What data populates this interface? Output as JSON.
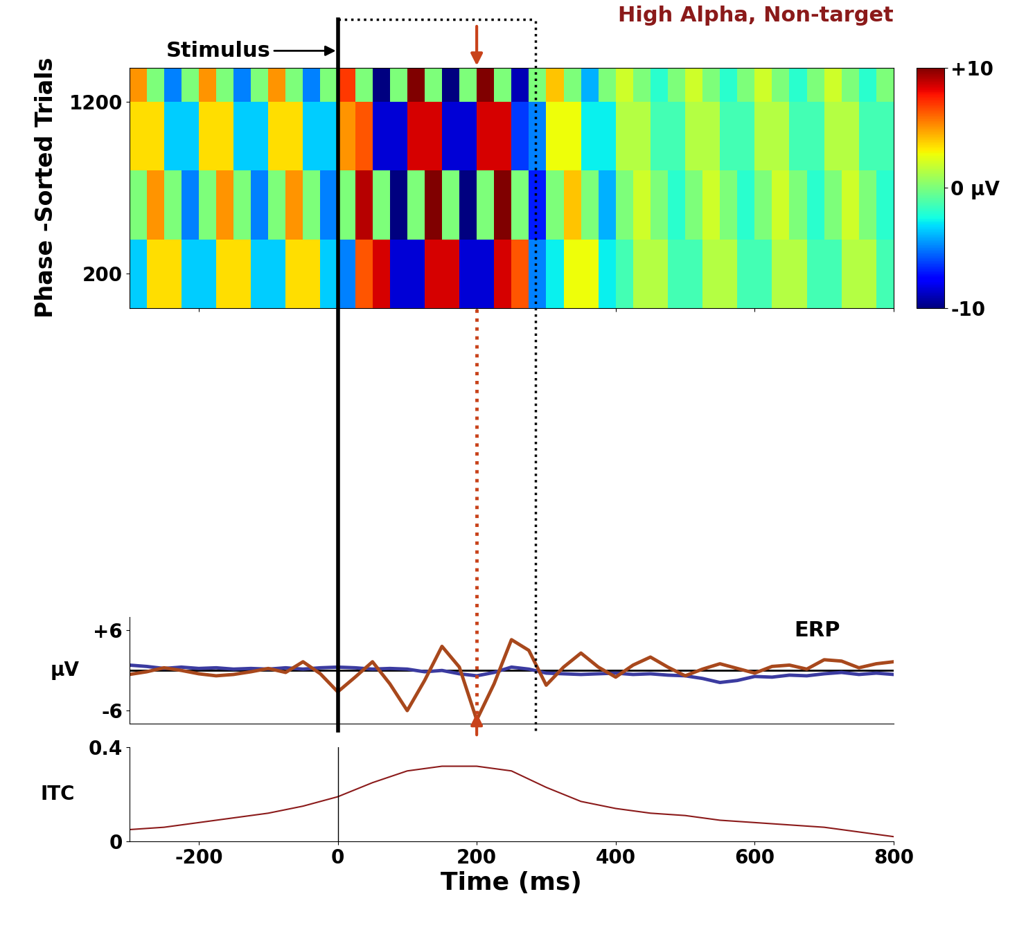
{
  "chart_data": [
    {
      "type": "heatmap",
      "title": "High Alpha, Non-target",
      "y_label": "Phase -Sorted Trials",
      "x_edges": [
        -300,
        -275,
        -250,
        -225,
        -200,
        -175,
        -150,
        -125,
        -100,
        -75,
        -50,
        -25,
        0,
        25,
        50,
        75,
        100,
        125,
        150,
        175,
        200,
        225,
        250,
        275,
        300,
        325,
        350,
        375,
        400,
        425,
        450,
        475,
        500,
        525,
        550,
        575,
        600,
        625,
        650,
        675,
        700,
        725,
        750,
        775,
        800
      ],
      "y_edges": [
        0,
        200,
        400,
        600,
        800,
        1000,
        1200,
        1400
      ],
      "cells": [
        [
          -3.5,
          3.5,
          3.5,
          -3.5,
          -3.5,
          3.5,
          3.5,
          -3.5,
          -3.5,
          3.5,
          3.5,
          -3.5,
          -5.0,
          6.4,
          8.5,
          -8.5,
          -8.5,
          8.5,
          8.5,
          -8.5,
          -8.5,
          8.5,
          6.4,
          -5.0,
          -2.8,
          2.8,
          2.8,
          -2.8,
          -1.4,
          1.4,
          1.4,
          -1.4,
          -1.4,
          1.4,
          1.4,
          -1.4,
          -1.4,
          1.4,
          1.4,
          -1.4,
          -1.4,
          1.4,
          1.4,
          -1.4
        ],
        [
          -3.5,
          3.5,
          3.5,
          -3.5,
          -3.5,
          3.5,
          3.5,
          -3.5,
          -3.5,
          3.5,
          3.5,
          -3.5,
          -5.0,
          6.4,
          8.5,
          -8.5,
          -8.5,
          8.5,
          8.5,
          -8.5,
          -8.5,
          8.5,
          6.4,
          -5.0,
          -2.8,
          2.8,
          2.8,
          -2.8,
          -1.4,
          1.4,
          1.4,
          -1.4,
          -1.4,
          1.4,
          1.4,
          -1.4,
          -1.4,
          1.4,
          1.4,
          -1.4,
          -1.4,
          1.4,
          1.4,
          -1.4
        ],
        [
          0,
          5,
          0,
          -5,
          0,
          5,
          0,
          -5,
          0,
          5,
          0,
          -5,
          0,
          9,
          0,
          -12,
          0,
          12,
          0,
          -12,
          0,
          12,
          0,
          -7,
          0,
          4,
          0,
          -4,
          0,
          2,
          0,
          -2,
          0,
          2,
          0,
          -2,
          0,
          2,
          0,
          -2,
          0,
          2,
          0,
          -2
        ],
        [
          0,
          5,
          0,
          -5,
          0,
          5,
          0,
          -5,
          0,
          5,
          0,
          -5,
          0,
          9,
          0,
          -12,
          0,
          12,
          0,
          -12,
          0,
          12,
          0,
          -7,
          0,
          4,
          0,
          -4,
          0,
          2,
          0,
          -2,
          0,
          2,
          0,
          -2,
          0,
          2,
          0,
          -2,
          0,
          2,
          0,
          -2
        ],
        [
          3.5,
          3.5,
          -3.5,
          -3.5,
          3.5,
          3.5,
          -3.5,
          -3.5,
          3.5,
          3.5,
          -3.5,
          -3.5,
          5.0,
          6.4,
          -8.5,
          -8.5,
          8.5,
          8.5,
          -8.5,
          -8.5,
          8.5,
          8.5,
          -6.4,
          -5.0,
          2.8,
          2.8,
          -2.8,
          -2.8,
          1.4,
          1.4,
          -1.4,
          -1.4,
          1.4,
          1.4,
          -1.4,
          -1.4,
          1.4,
          1.4,
          -1.4,
          -1.4,
          1.4,
          1.4,
          -1.4,
          -1.4
        ],
        [
          3.5,
          3.5,
          -3.5,
          -3.5,
          3.5,
          3.5,
          -3.5,
          -3.5,
          3.5,
          3.5,
          -3.5,
          -3.5,
          5.0,
          6.4,
          -8.5,
          -8.5,
          8.5,
          8.5,
          -8.5,
          -8.5,
          8.5,
          8.5,
          -6.4,
          -5.0,
          2.8,
          2.8,
          -2.8,
          -2.8,
          1.4,
          1.4,
          -1.4,
          -1.4,
          1.4,
          1.4,
          -1.4,
          -1.4,
          1.4,
          1.4,
          -1.4,
          -1.4,
          1.4,
          1.4,
          -1.4,
          -1.4
        ],
        [
          5,
          0,
          -5,
          0,
          5,
          0,
          -5,
          0,
          5,
          0,
          -5,
          0,
          7,
          0,
          -12,
          0,
          12,
          0,
          -12,
          0,
          12,
          0,
          -9,
          0,
          4,
          0,
          -4,
          0,
          2,
          0,
          -2,
          0,
          2,
          0,
          -2,
          0,
          2,
          0,
          -2,
          0,
          2,
          0,
          -2,
          0
        ]
      ],
      "xlim": [
        -300,
        800
      ],
      "ylim": [
        0,
        1400
      ],
      "xticks": [
        -200,
        0,
        200,
        400,
        600,
        800
      ],
      "yticks": [
        200,
        1200
      ],
      "tick_labels": "y",
      "colorbar_range": [
        -10,
        10
      ],
      "colorbar_ticks": [
        {
          "value": 10,
          "label": "+10"
        },
        {
          "value": 0,
          "label": "0 μV"
        },
        -10
      ],
      "events": [
        {
          "label": "Stimulus",
          "x": 0
        }
      ],
      "window": [
        0,
        285
      ],
      "latency": 200
    },
    {
      "type": "line",
      "annotation": "ERP",
      "y_label": "μV",
      "x": [
        -300,
        -275,
        -250,
        -225,
        -200,
        -175,
        -150,
        -125,
        -100,
        -75,
        -50,
        -25,
        0,
        25,
        50,
        75,
        100,
        125,
        150,
        175,
        200,
        225,
        250,
        275,
        300,
        325,
        350,
        375,
        400,
        425,
        450,
        475,
        500,
        525,
        550,
        575,
        600,
        625,
        650,
        675,
        700,
        725,
        750,
        775,
        800
      ],
      "series": [
        {
          "color": "#3b3ba0",
          "values": [
            0.8,
            0.6,
            0.3,
            0.5,
            0.3,
            0.4,
            0.2,
            0.3,
            0.2,
            0.4,
            0.2,
            0.4,
            0.5,
            0.4,
            0.2,
            0.3,
            0.2,
            -0.2,
            0.0,
            -0.5,
            -0.8,
            -0.3,
            0.5,
            0.2,
            -0.4,
            -0.5,
            -0.6,
            -0.5,
            -0.4,
            -0.6,
            -0.5,
            -0.7,
            -0.8,
            -1.2,
            -1.8,
            -1.5,
            -0.9,
            -1.0,
            -0.7,
            -0.8,
            -0.5,
            -0.3,
            -0.6,
            -0.4,
            -0.6
          ]
        },
        {
          "color": "#a8481c",
          "values": [
            -0.6,
            -0.2,
            0.4,
            0.0,
            -0.5,
            -0.8,
            -0.6,
            -0.2,
            0.3,
            -0.3,
            1.3,
            -0.5,
            -3.2,
            -1.0,
            1.3,
            -2.0,
            -6.0,
            -1.5,
            3.6,
            0.5,
            -7.4,
            -2.0,
            4.6,
            3.0,
            -2.2,
            0.5,
            2.6,
            0.5,
            -1.0,
            0.8,
            2.0,
            0.5,
            -0.8,
            0.2,
            1.0,
            0.3,
            -0.4,
            0.6,
            0.8,
            0.2,
            1.6,
            1.4,
            0.4,
            1.0,
            1.3
          ]
        }
      ],
      "zero_line": 0,
      "xlim": [
        -300,
        800
      ],
      "ylim": [
        -8,
        8
      ],
      "yticks": [
        {
          "value": 6,
          "label": "+6"
        },
        {
          "value": -6,
          "label": "-6"
        }
      ],
      "tick_labels": "y"
    },
    {
      "type": "line",
      "y_label": "ITC",
      "x_label": "Time (ms)",
      "color": "#8b1a1a",
      "x": [
        -300,
        -250,
        -200,
        -150,
        -100,
        -50,
        0,
        50,
        100,
        150,
        200,
        250,
        300,
        350,
        400,
        450,
        500,
        550,
        600,
        650,
        700,
        750,
        800
      ],
      "values": [
        0.05,
        0.06,
        0.08,
        0.1,
        0.12,
        0.15,
        0.19,
        0.25,
        0.3,
        0.32,
        0.32,
        0.3,
        0.23,
        0.17,
        0.14,
        0.12,
        0.11,
        0.09,
        0.08,
        0.07,
        0.06,
        0.04,
        0.02
      ],
      "xlim": [
        -300,
        800
      ],
      "ylim": [
        0,
        0.4
      ],
      "xticks": [
        -200,
        0,
        200,
        400,
        600,
        800
      ],
      "yticks": [
        0,
        0.4
      ]
    }
  ]
}
